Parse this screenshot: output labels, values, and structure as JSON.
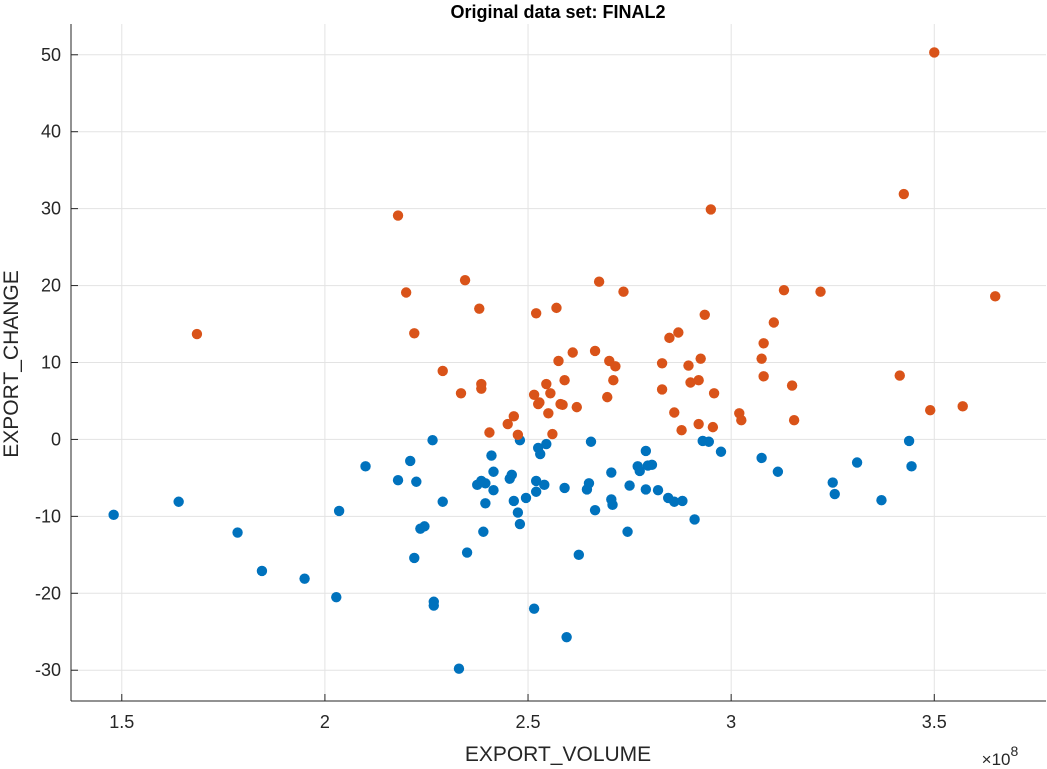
{
  "chart_data": {
    "type": "scatter",
    "title": "Original data set: FINAL2",
    "xlabel": "EXPORT_VOLUME",
    "ylabel": "EXPORT_CHANGE",
    "x_exponent_label": "×10",
    "x_exponent_power": "8",
    "x_scale": 100000000,
    "xlim": [
      137500000,
      377500000
    ],
    "ylim": [
      -34,
      54
    ],
    "xticks": [
      150000000,
      200000000,
      250000000,
      300000000,
      350000000
    ],
    "xtick_labels": [
      "1.5",
      "2",
      "2.5",
      "3",
      "3.5"
    ],
    "yticks": [
      -30,
      -20,
      -10,
      0,
      10,
      20,
      30,
      40,
      50
    ],
    "ytick_labels": [
      "-30",
      "-20",
      "-10",
      "0",
      "10",
      "20",
      "30",
      "40",
      "50"
    ],
    "grid": true,
    "series": [
      {
        "color": "#0072BD",
        "x": [
          148000000,
          164000000,
          178500000,
          184500000,
          195000000,
          202800000,
          203500000,
          210000000,
          218000000,
          221000000,
          222500000,
          222000000,
          223500000,
          224500000,
          226500000,
          226800000,
          226800000,
          229000000,
          233000000,
          235000000,
          237500000,
          238500000,
          239000000,
          239500000,
          239500000,
          241000000,
          241500000,
          241500000,
          245500000,
          246000000,
          246500000,
          247500000,
          248000000,
          248000000,
          249500000,
          251500000,
          252000000,
          252000000,
          252500000,
          253000000,
          254000000,
          254500000,
          259000000,
          259500000,
          262500000,
          264500000,
          265000000,
          265500000,
          266500000,
          270500000,
          270500000,
          270800000,
          274500000,
          275000000,
          277000000,
          277500000,
          279000000,
          279000000,
          279500000,
          280500000,
          282000000,
          284500000,
          286000000,
          288000000,
          291000000,
          293000000,
          294500000,
          297500000,
          307500000,
          311500000,
          325000000,
          325500000,
          331000000,
          337000000,
          343800000,
          344400000
        ],
        "y": [
          -9.8,
          -8.1,
          -12.1,
          -17.1,
          -18.1,
          -20.5,
          -9.3,
          -3.5,
          -5.3,
          -2.8,
          -5.5,
          -15.4,
          -11.6,
          -11.3,
          -0.1,
          -21.1,
          -21.6,
          -8.1,
          -29.8,
          -14.7,
          -5.9,
          -5.4,
          -12.0,
          -8.3,
          -5.7,
          -2.1,
          -4.2,
          -6.6,
          -5.1,
          -4.6,
          -8.0,
          -9.5,
          -11.0,
          -0.1,
          -7.6,
          -22.0,
          -6.8,
          -5.4,
          -1.1,
          -1.9,
          -5.9,
          -0.6,
          -6.3,
          -25.7,
          -15.0,
          -6.5,
          -5.7,
          -0.3,
          -9.2,
          -4.3,
          -7.8,
          -8.5,
          -12.0,
          -6.0,
          -3.5,
          -4.1,
          -6.5,
          -1.5,
          -3.4,
          -3.3,
          -6.6,
          -7.6,
          -8.1,
          -8.0,
          -10.4,
          -0.2,
          -0.3,
          -1.6,
          -2.4,
          -4.2,
          -5.6,
          -7.1,
          -3.0,
          -7.9,
          -0.2,
          -3.5
        ]
      },
      {
        "color": "#D95319",
        "x": [
          168500000,
          218000000,
          220000000,
          222000000,
          229000000,
          233500000,
          234500000,
          238000000,
          238500000,
          238500000,
          240500000,
          245000000,
          246500000,
          247500000,
          251500000,
          252000000,
          252500000,
          252800000,
          254500000,
          255000000,
          255500000,
          256000000,
          257000000,
          257500000,
          258000000,
          258500000,
          259000000,
          261000000,
          262000000,
          266500000,
          267500000,
          269500000,
          270000000,
          271000000,
          271500000,
          273500000,
          283000000,
          283000000,
          284800000,
          286000000,
          287000000,
          287800000,
          289500000,
          290000000,
          292000000,
          292000000,
          292500000,
          293500000,
          295000000,
          295500000,
          295800000,
          302000000,
          302500000,
          307500000,
          308000000,
          308000000,
          310500000,
          313000000,
          315000000,
          315500000,
          322000000,
          341500000,
          342500000,
          349000000,
          350000000,
          357000000,
          365000000
        ],
        "y": [
          13.7,
          29.1,
          19.1,
          13.8,
          8.9,
          6.0,
          20.7,
          17.0,
          6.6,
          7.2,
          0.9,
          2.0,
          3.0,
          0.6,
          5.8,
          16.4,
          4.6,
          4.8,
          7.2,
          3.4,
          6.0,
          0.7,
          17.1,
          10.2,
          4.6,
          4.5,
          7.7,
          11.3,
          4.2,
          11.5,
          20.5,
          5.5,
          10.2,
          7.7,
          9.5,
          19.2,
          9.9,
          6.5,
          13.2,
          3.5,
          13.9,
          1.2,
          9.6,
          7.4,
          2.0,
          7.7,
          10.5,
          16.2,
          29.9,
          1.6,
          6.0,
          3.4,
          2.5,
          10.5,
          8.2,
          12.5,
          15.2,
          19.4,
          7.0,
          2.5,
          19.2,
          8.3,
          31.9,
          3.8,
          50.3,
          4.3,
          18.6
        ]
      }
    ]
  }
}
